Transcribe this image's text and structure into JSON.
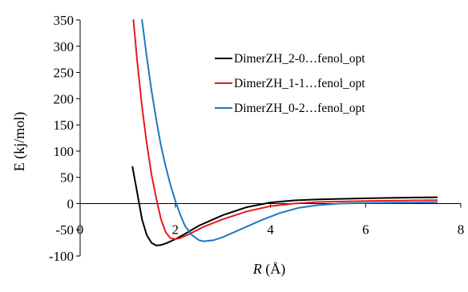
{
  "chart_data": {
    "type": "line",
    "xlabel_var": "R",
    "xlabel_unit": " (Å)",
    "ylabel": "E (kj/mol)",
    "xlim": [
      0,
      8
    ],
    "ylim": [
      -100,
      350
    ],
    "xticks": [
      0,
      2,
      4,
      6,
      8
    ],
    "yticks": [
      -100,
      -50,
      0,
      50,
      100,
      150,
      200,
      250,
      300,
      350
    ],
    "grid": false,
    "legend_position": "upper-right",
    "series": [
      {
        "name": "DimerZH_2-0…fenol_opt",
        "color": "#000000",
        "points": [
          [
            1.1,
            70
          ],
          [
            1.2,
            20
          ],
          [
            1.3,
            -30
          ],
          [
            1.4,
            -60
          ],
          [
            1.5,
            -75
          ],
          [
            1.6,
            -80
          ],
          [
            1.7,
            -79
          ],
          [
            1.8,
            -76
          ],
          [
            2.0,
            -68
          ],
          [
            2.2,
            -58
          ],
          [
            2.5,
            -42
          ],
          [
            3.0,
            -22
          ],
          [
            3.5,
            -7
          ],
          [
            4.0,
            2
          ],
          [
            4.5,
            6
          ],
          [
            5.0,
            8
          ],
          [
            6.0,
            10
          ],
          [
            7.0,
            11.5
          ],
          [
            7.5,
            12
          ]
        ]
      },
      {
        "name": "DimerZH_1-1…fenol_opt",
        "color": "#e8191b",
        "points": [
          [
            1.12,
            350
          ],
          [
            1.2,
            270
          ],
          [
            1.3,
            185
          ],
          [
            1.4,
            115
          ],
          [
            1.5,
            55
          ],
          [
            1.6,
            10
          ],
          [
            1.7,
            -30
          ],
          [
            1.8,
            -55
          ],
          [
            1.9,
            -66
          ],
          [
            2.0,
            -68
          ],
          [
            2.1,
            -66
          ],
          [
            2.3,
            -58
          ],
          [
            2.6,
            -44
          ],
          [
            3.0,
            -30
          ],
          [
            3.5,
            -15
          ],
          [
            4.0,
            -5
          ],
          [
            4.5,
            0
          ],
          [
            5.0,
            3
          ],
          [
            6.0,
            5
          ],
          [
            7.0,
            6
          ],
          [
            7.5,
            6.5
          ]
        ]
      },
      {
        "name": "DimerZH_0-2…fenol_opt",
        "color": "#1f77c4",
        "points": [
          [
            1.3,
            350
          ],
          [
            1.4,
            280
          ],
          [
            1.5,
            215
          ],
          [
            1.6,
            160
          ],
          [
            1.7,
            110
          ],
          [
            1.8,
            70
          ],
          [
            1.9,
            35
          ],
          [
            2.0,
            5
          ],
          [
            2.1,
            -20
          ],
          [
            2.2,
            -42
          ],
          [
            2.35,
            -60
          ],
          [
            2.5,
            -70
          ],
          [
            2.6,
            -72
          ],
          [
            2.8,
            -70
          ],
          [
            3.0,
            -64
          ],
          [
            3.4,
            -48
          ],
          [
            3.8,
            -32
          ],
          [
            4.2,
            -18
          ],
          [
            4.6,
            -8
          ],
          [
            5.0,
            -3
          ],
          [
            5.5,
            0
          ],
          [
            6.0,
            1
          ],
          [
            7.0,
            2
          ],
          [
            7.5,
            2.5
          ]
        ]
      }
    ]
  }
}
